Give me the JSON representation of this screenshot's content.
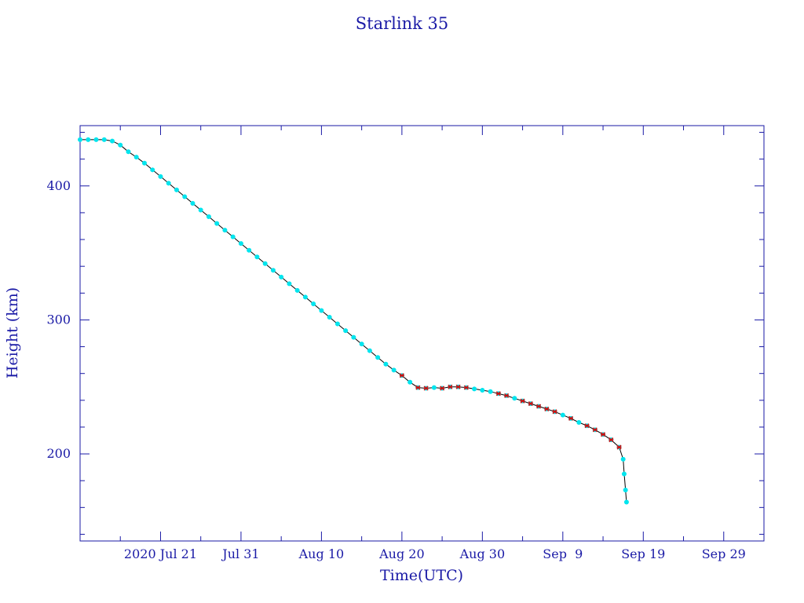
{
  "chart_data": {
    "type": "scatter",
    "title": "Starlink 35",
    "xlabel": "Time(UTC)",
    "ylabel": "Height (km)",
    "x_tick_labels": [
      "2020 Jul 21",
      "Jul 31",
      "Aug 10",
      "Aug 20",
      "Aug 30",
      "Sep  9",
      "Sep 19",
      "Sep 29"
    ],
    "x_tick_dates": [
      "2020-07-21",
      "2020-07-31",
      "2020-08-10",
      "2020-08-20",
      "2020-08-30",
      "2020-09-09",
      "2020-09-19",
      "2020-09-29"
    ],
    "xlim": [
      "2020-07-11",
      "2020-10-04"
    ],
    "y_ticks": [
      200,
      300,
      400
    ],
    "ylim": [
      135,
      445
    ],
    "grid": false,
    "colors": {
      "axis": "#1a1aa6",
      "text": "#1a1aa6",
      "line": "#000000",
      "points": "#00e5ee",
      "markers": "#cc1111"
    },
    "series": [
      {
        "points": [
          [
            "2020-07-11",
            434.5
          ],
          [
            "2020-07-12",
            434.5
          ],
          [
            "2020-07-13",
            434.5
          ],
          [
            "2020-07-14",
            434.5
          ],
          [
            "2020-07-15",
            433.5
          ],
          [
            "2020-07-16",
            430.5
          ],
          [
            "2020-07-17",
            425.5
          ],
          [
            "2020-07-18",
            421.5
          ],
          [
            "2020-07-19",
            417
          ],
          [
            "2020-07-20",
            412
          ],
          [
            "2020-07-21",
            407
          ],
          [
            "2020-07-22",
            402
          ],
          [
            "2020-07-23",
            397
          ],
          [
            "2020-07-24",
            392
          ],
          [
            "2020-07-25",
            387
          ],
          [
            "2020-07-26",
            382
          ],
          [
            "2020-07-27",
            377
          ],
          [
            "2020-07-28",
            372
          ],
          [
            "2020-07-29",
            367
          ],
          [
            "2020-07-30",
            362
          ],
          [
            "2020-07-31",
            357
          ],
          [
            "2020-08-01",
            352
          ],
          [
            "2020-08-02",
            347
          ],
          [
            "2020-08-03",
            342
          ],
          [
            "2020-08-04",
            337
          ],
          [
            "2020-08-05",
            332
          ],
          [
            "2020-08-06",
            327
          ],
          [
            "2020-08-07",
            322
          ],
          [
            "2020-08-08",
            317
          ],
          [
            "2020-08-09",
            312
          ],
          [
            "2020-08-10",
            307
          ],
          [
            "2020-08-11",
            302
          ],
          [
            "2020-08-12",
            297
          ],
          [
            "2020-08-13",
            292
          ],
          [
            "2020-08-14",
            287
          ],
          [
            "2020-08-15",
            282
          ],
          [
            "2020-08-16",
            277
          ],
          [
            "2020-08-17",
            272
          ],
          [
            "2020-08-18",
            267
          ],
          [
            "2020-08-19",
            262.5
          ],
          [
            "2020-08-20",
            258.5
          ],
          [
            "2020-08-21",
            253.5
          ],
          [
            "2020-08-22",
            249.5
          ],
          [
            "2020-08-23",
            249
          ],
          [
            "2020-08-24",
            249.5
          ],
          [
            "2020-08-25",
            249
          ],
          [
            "2020-08-26",
            250
          ],
          [
            "2020-08-27",
            250
          ],
          [
            "2020-08-28",
            249.5
          ],
          [
            "2020-08-29",
            248.5
          ],
          [
            "2020-08-30",
            247.5
          ],
          [
            "2020-08-31",
            246.5
          ],
          [
            "2020-09-01",
            245
          ],
          [
            "2020-09-02",
            243.5
          ],
          [
            "2020-09-03",
            241.5
          ],
          [
            "2020-09-04",
            239.5
          ],
          [
            "2020-09-05",
            237.5
          ],
          [
            "2020-09-06",
            235.5
          ],
          [
            "2020-09-07",
            233.5
          ],
          [
            "2020-09-08",
            231.5
          ],
          [
            "2020-09-09",
            229
          ],
          [
            "2020-09-10",
            226.5
          ],
          [
            "2020-09-11",
            223.5
          ],
          [
            "2020-09-12",
            221
          ],
          [
            "2020-09-13",
            218
          ],
          [
            "2020-09-14",
            214.5
          ],
          [
            "2020-09-15",
            210.5
          ],
          [
            "2020-09-16",
            205
          ],
          [
            "2020-09-16T12:00",
            196
          ],
          [
            "2020-09-16T15:00",
            185
          ],
          [
            "2020-09-16T19:00",
            173
          ],
          [
            "2020-09-16T22:00",
            164
          ]
        ],
        "marked": [
          [
            "2020-08-20",
            258.5
          ],
          [
            "2020-08-22",
            249.5
          ],
          [
            "2020-08-23",
            249
          ],
          [
            "2020-08-25",
            249
          ],
          [
            "2020-08-26",
            250
          ],
          [
            "2020-08-27",
            250
          ],
          [
            "2020-08-28",
            249.5
          ],
          [
            "2020-09-01",
            245
          ],
          [
            "2020-09-02",
            243.5
          ],
          [
            "2020-09-04",
            239.5
          ],
          [
            "2020-09-05",
            237.5
          ],
          [
            "2020-09-06",
            235.5
          ],
          [
            "2020-09-07",
            233.5
          ],
          [
            "2020-09-08",
            231.5
          ],
          [
            "2020-09-10",
            226.5
          ],
          [
            "2020-09-12",
            221
          ],
          [
            "2020-09-13",
            218
          ],
          [
            "2020-09-14",
            214.5
          ],
          [
            "2020-09-15",
            210.5
          ],
          [
            "2020-09-16",
            205
          ]
        ]
      }
    ]
  }
}
